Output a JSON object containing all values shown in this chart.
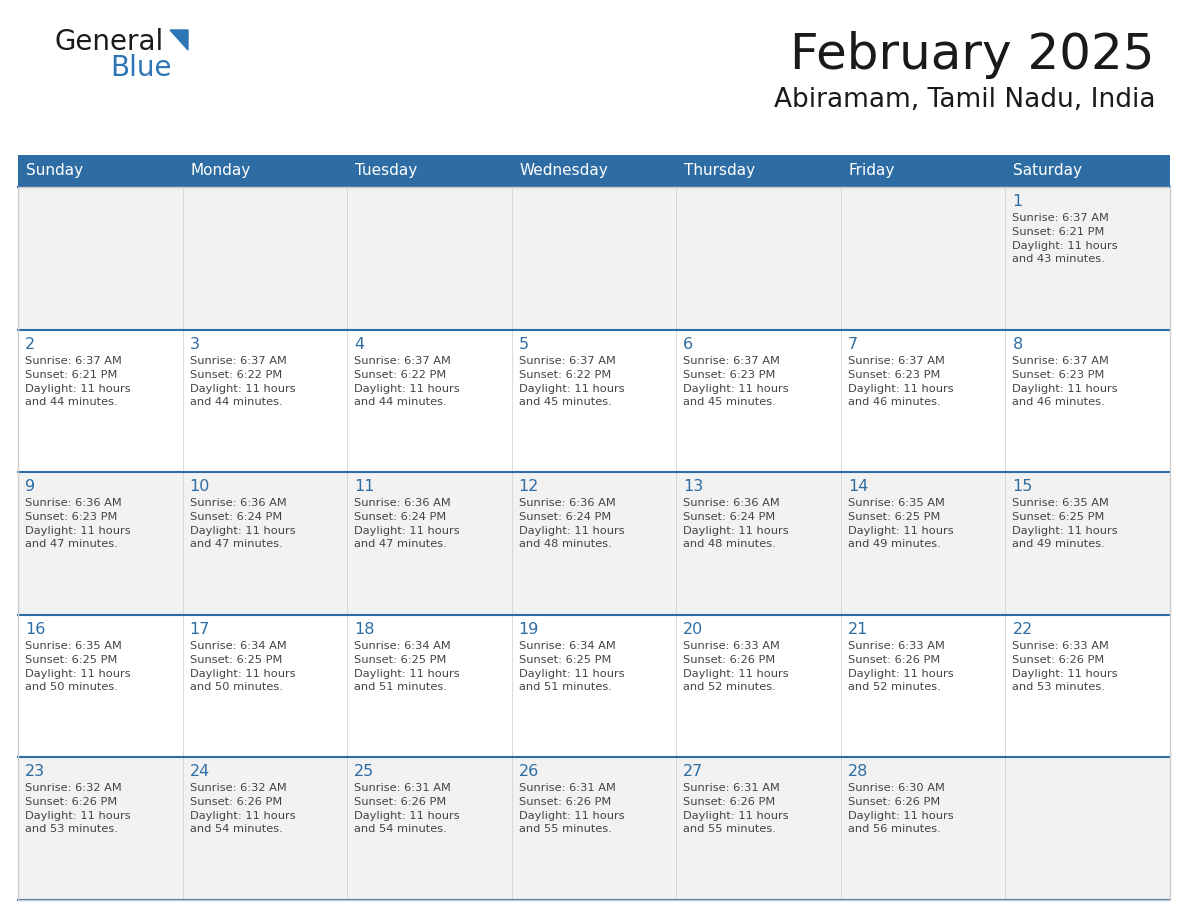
{
  "title": "February 2025",
  "subtitle": "Abiramam, Tamil Nadu, India",
  "header_bg": "#2E6DA4",
  "header_text": "#FFFFFF",
  "day_names": [
    "Sunday",
    "Monday",
    "Tuesday",
    "Wednesday",
    "Thursday",
    "Friday",
    "Saturday"
  ],
  "cell_bg_light": "#F2F2F2",
  "cell_bg_white": "#FFFFFF",
  "cell_border": "#CCCCCC",
  "row_separator": "#2E6DA4",
  "day_number_color": "#2E6DA4",
  "info_text_color": "#444444",
  "title_color": "#1A1A1A",
  "subtitle_color": "#1A1A1A",
  "logo_general_color": "#1A1A1A",
  "logo_blue_color": "#2E75B6",
  "calendar_data": [
    [
      null,
      null,
      null,
      null,
      null,
      null,
      {
        "day": 1,
        "sunrise": "6:37 AM",
        "sunset": "6:21 PM",
        "daylight": "11 hours and 43 minutes"
      }
    ],
    [
      {
        "day": 2,
        "sunrise": "6:37 AM",
        "sunset": "6:21 PM",
        "daylight": "11 hours and 44 minutes"
      },
      {
        "day": 3,
        "sunrise": "6:37 AM",
        "sunset": "6:22 PM",
        "daylight": "11 hours and 44 minutes"
      },
      {
        "day": 4,
        "sunrise": "6:37 AM",
        "sunset": "6:22 PM",
        "daylight": "11 hours and 44 minutes"
      },
      {
        "day": 5,
        "sunrise": "6:37 AM",
        "sunset": "6:22 PM",
        "daylight": "11 hours and 45 minutes"
      },
      {
        "day": 6,
        "sunrise": "6:37 AM",
        "sunset": "6:23 PM",
        "daylight": "11 hours and 45 minutes"
      },
      {
        "day": 7,
        "sunrise": "6:37 AM",
        "sunset": "6:23 PM",
        "daylight": "11 hours and 46 minutes"
      },
      {
        "day": 8,
        "sunrise": "6:37 AM",
        "sunset": "6:23 PM",
        "daylight": "11 hours and 46 minutes"
      }
    ],
    [
      {
        "day": 9,
        "sunrise": "6:36 AM",
        "sunset": "6:23 PM",
        "daylight": "11 hours and 47 minutes"
      },
      {
        "day": 10,
        "sunrise": "6:36 AM",
        "sunset": "6:24 PM",
        "daylight": "11 hours and 47 minutes"
      },
      {
        "day": 11,
        "sunrise": "6:36 AM",
        "sunset": "6:24 PM",
        "daylight": "11 hours and 47 minutes"
      },
      {
        "day": 12,
        "sunrise": "6:36 AM",
        "sunset": "6:24 PM",
        "daylight": "11 hours and 48 minutes"
      },
      {
        "day": 13,
        "sunrise": "6:36 AM",
        "sunset": "6:24 PM",
        "daylight": "11 hours and 48 minutes"
      },
      {
        "day": 14,
        "sunrise": "6:35 AM",
        "sunset": "6:25 PM",
        "daylight": "11 hours and 49 minutes"
      },
      {
        "day": 15,
        "sunrise": "6:35 AM",
        "sunset": "6:25 PM",
        "daylight": "11 hours and 49 minutes"
      }
    ],
    [
      {
        "day": 16,
        "sunrise": "6:35 AM",
        "sunset": "6:25 PM",
        "daylight": "11 hours and 50 minutes"
      },
      {
        "day": 17,
        "sunrise": "6:34 AM",
        "sunset": "6:25 PM",
        "daylight": "11 hours and 50 minutes"
      },
      {
        "day": 18,
        "sunrise": "6:34 AM",
        "sunset": "6:25 PM",
        "daylight": "11 hours and 51 minutes"
      },
      {
        "day": 19,
        "sunrise": "6:34 AM",
        "sunset": "6:25 PM",
        "daylight": "11 hours and 51 minutes"
      },
      {
        "day": 20,
        "sunrise": "6:33 AM",
        "sunset": "6:26 PM",
        "daylight": "11 hours and 52 minutes"
      },
      {
        "day": 21,
        "sunrise": "6:33 AM",
        "sunset": "6:26 PM",
        "daylight": "11 hours and 52 minutes"
      },
      {
        "day": 22,
        "sunrise": "6:33 AM",
        "sunset": "6:26 PM",
        "daylight": "11 hours and 53 minutes"
      }
    ],
    [
      {
        "day": 23,
        "sunrise": "6:32 AM",
        "sunset": "6:26 PM",
        "daylight": "11 hours and 53 minutes"
      },
      {
        "day": 24,
        "sunrise": "6:32 AM",
        "sunset": "6:26 PM",
        "daylight": "11 hours and 54 minutes"
      },
      {
        "day": 25,
        "sunrise": "6:31 AM",
        "sunset": "6:26 PM",
        "daylight": "11 hours and 54 minutes"
      },
      {
        "day": 26,
        "sunrise": "6:31 AM",
        "sunset": "6:26 PM",
        "daylight": "11 hours and 55 minutes"
      },
      {
        "day": 27,
        "sunrise": "6:31 AM",
        "sunset": "6:26 PM",
        "daylight": "11 hours and 55 minutes"
      },
      {
        "day": 28,
        "sunrise": "6:30 AM",
        "sunset": "6:26 PM",
        "daylight": "11 hours and 56 minutes"
      },
      null
    ]
  ]
}
